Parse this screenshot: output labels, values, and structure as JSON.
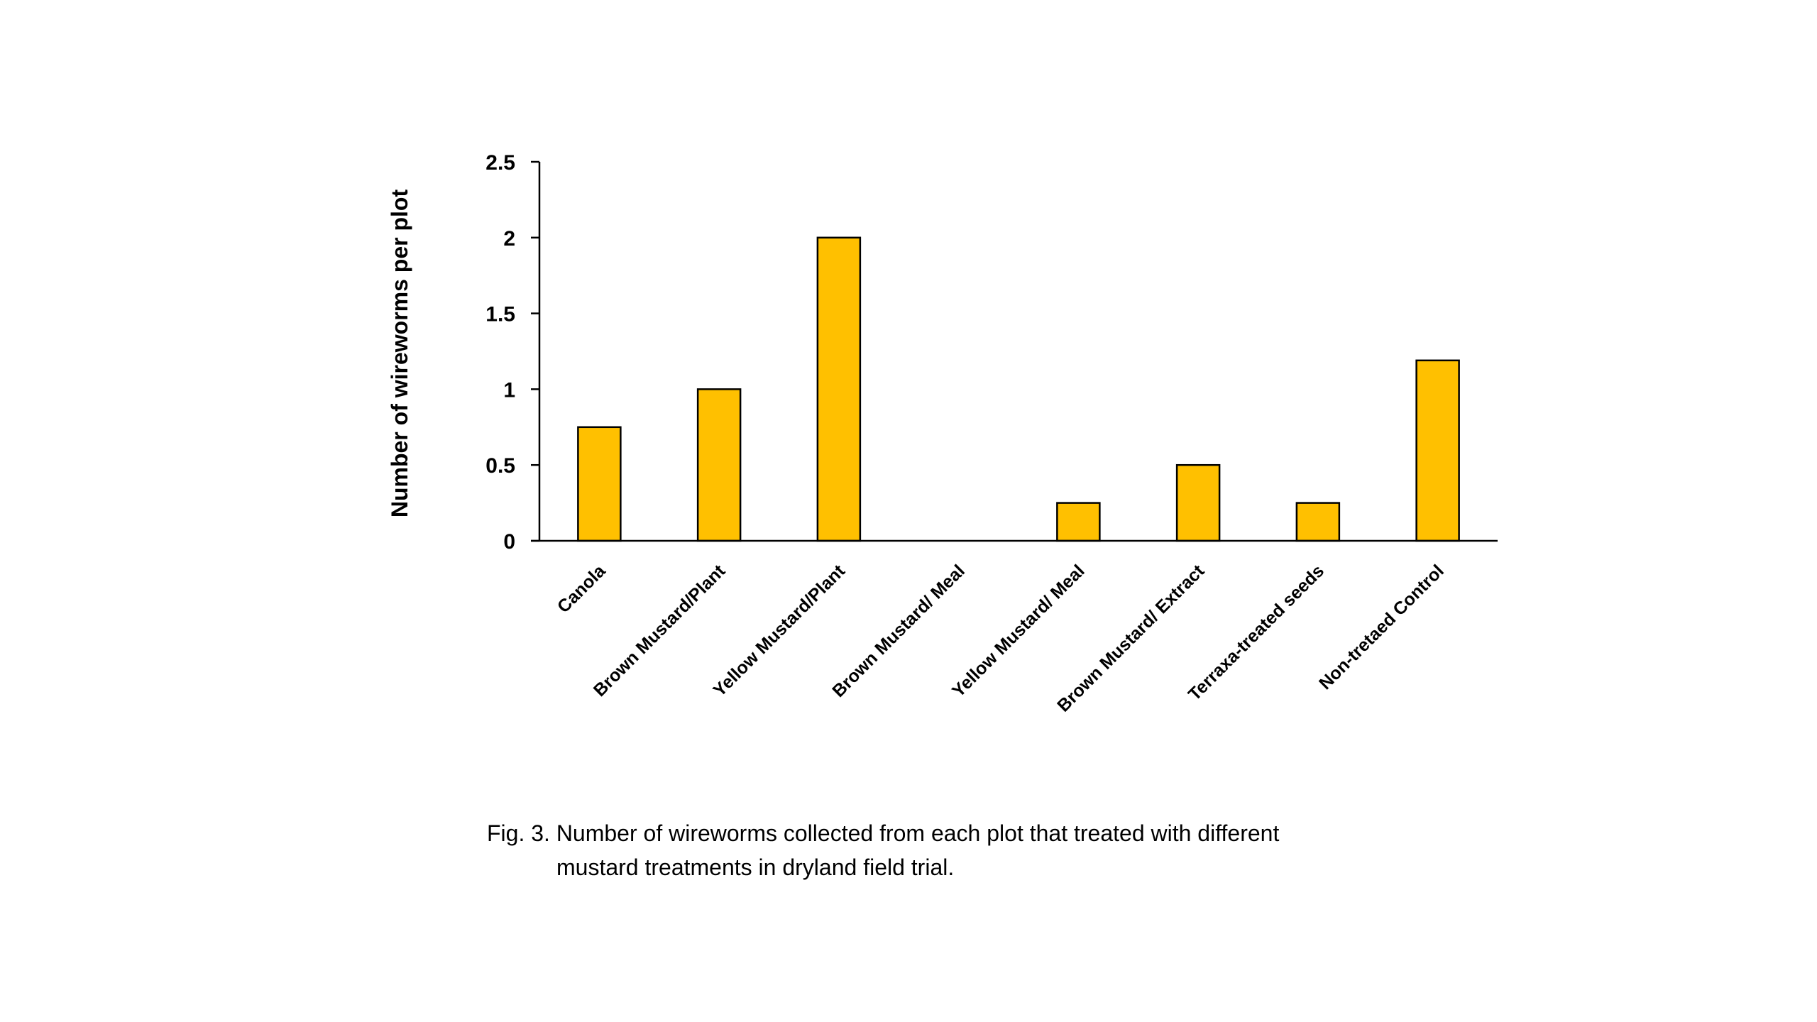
{
  "chart_data": {
    "type": "bar",
    "title": "",
    "xlabel": "",
    "ylabel": "Number of wireworms per plot",
    "categories": [
      "Canola",
      "Brown Mustard/Plant",
      "Yellow Mustard/Plant",
      "Brown Mustard/ Meal",
      "Yellow Mustard/ Meal",
      "Brown Mustard/ Extract",
      "Terraxa-treated seeds",
      "Non-tretaed Control"
    ],
    "values": [
      0.75,
      1.0,
      2.0,
      0,
      0.25,
      0.5,
      0.25,
      1.19
    ],
    "ylim": [
      0,
      2.5
    ],
    "yticks": [
      "0",
      "0.5",
      "1",
      "1.5",
      "2",
      "2.5"
    ],
    "ytick_values": [
      0,
      0.5,
      1,
      1.5,
      2,
      2.5
    ],
    "bar_color": "#FFC000",
    "bar_edge_color": "#000000",
    "grid": false,
    "legend": "none"
  },
  "caption": {
    "line1": "Fig. 3. Number of wireworms collected from each plot that treated with different",
    "line2": "mustard treatments in dryland field trial."
  }
}
